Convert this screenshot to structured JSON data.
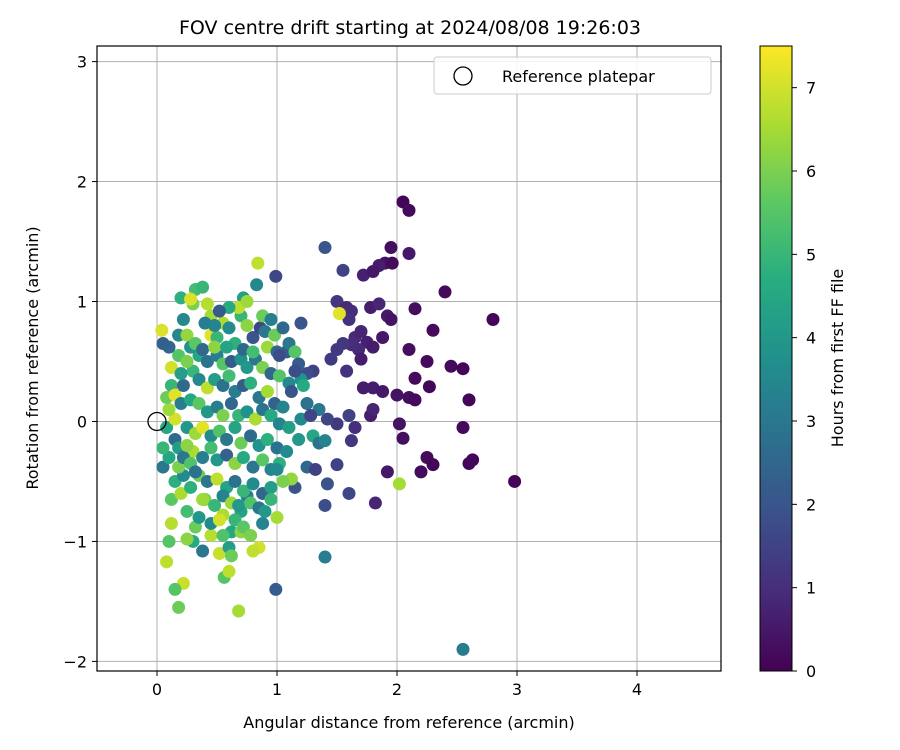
{
  "chart_data": {
    "type": "scatter",
    "title": "FOV centre drift starting at 2024/08/08 19:26:03",
    "xlabel": "Angular distance from reference (arcmin)",
    "ylabel": "Rotation from reference (arcmin)",
    "xlim": [
      -0.5,
      4.7
    ],
    "ylim": [
      -2.08,
      3.13
    ],
    "x_ticks": [
      0,
      1,
      2,
      3,
      4
    ],
    "y_ticks": [
      -2,
      -1,
      0,
      1,
      2,
      3
    ],
    "grid": true,
    "legend": {
      "placement": "top-right",
      "entries": [
        {
          "label": "Reference platepar",
          "marker": "open-circle",
          "x": 0,
          "y": 0
        }
      ]
    },
    "colorbar": {
      "label": "Hours from first FF file",
      "colormap": "viridis",
      "range": [
        0,
        7.5
      ],
      "ticks": [
        0,
        1,
        2,
        3,
        4,
        5,
        6,
        7
      ]
    },
    "points": [
      [
        2.05,
        1.83,
        0.1
      ],
      [
        2.1,
        1.76,
        0.2
      ],
      [
        1.95,
        1.45,
        0.3
      ],
      [
        2.1,
        1.4,
        0.5
      ],
      [
        1.9,
        1.32,
        0.4
      ],
      [
        1.96,
        1.32,
        0.2
      ],
      [
        1.85,
        1.3,
        0.6
      ],
      [
        1.72,
        1.22,
        0.7
      ],
      [
        1.8,
        1.25,
        0.5
      ],
      [
        2.4,
        1.08,
        0.2
      ],
      [
        1.55,
        1.26,
        1.5
      ],
      [
        1.4,
        1.45,
        2.0
      ],
      [
        2.8,
        0.85,
        0.1
      ],
      [
        1.5,
        1.0,
        1.2
      ],
      [
        1.58,
        0.95,
        0.9
      ],
      [
        1.62,
        0.92,
        1.0
      ],
      [
        1.78,
        0.95,
        0.6
      ],
      [
        1.85,
        0.98,
        0.8
      ],
      [
        1.92,
        0.88,
        0.5
      ],
      [
        1.95,
        0.85,
        0.4
      ],
      [
        2.15,
        0.94,
        0.3
      ],
      [
        2.3,
        0.76,
        0.2
      ],
      [
        1.6,
        0.85,
        1.1
      ],
      [
        1.65,
        0.7,
        0.9
      ],
      [
        1.7,
        0.75,
        0.8
      ],
      [
        1.75,
        0.66,
        0.7
      ],
      [
        1.68,
        0.6,
        0.9
      ],
      [
        1.62,
        0.64,
        1.0
      ],
      [
        1.55,
        0.65,
        1.2
      ],
      [
        1.8,
        0.62,
        0.6
      ],
      [
        1.88,
        0.7,
        0.5
      ],
      [
        1.7,
        0.52,
        0.6
      ],
      [
        1.5,
        0.6,
        1.3
      ],
      [
        2.1,
        0.6,
        0.3
      ],
      [
        2.25,
        0.5,
        0.2
      ],
      [
        2.45,
        0.46,
        0.2
      ],
      [
        2.55,
        0.44,
        0.1
      ],
      [
        2.15,
        0.36,
        0.2
      ],
      [
        2.27,
        0.29,
        0.1
      ],
      [
        2.6,
        0.18,
        0.1
      ],
      [
        2.1,
        0.2,
        0.3
      ],
      [
        2.15,
        0.18,
        0.2
      ],
      [
        1.72,
        0.28,
        0.6
      ],
      [
        1.8,
        0.28,
        0.6
      ],
      [
        1.88,
        0.25,
        0.5
      ],
      [
        2.0,
        0.22,
        0.4
      ],
      [
        1.58,
        0.42,
        1.1
      ],
      [
        1.45,
        0.52,
        1.3
      ],
      [
        1.3,
        0.42,
        1.5
      ],
      [
        1.25,
        0.4,
        1.8
      ],
      [
        1.6,
        0.05,
        1.5
      ],
      [
        1.78,
        0.05,
        0.6
      ],
      [
        1.8,
        0.1,
        0.8
      ],
      [
        1.65,
        -0.05,
        1.0
      ],
      [
        1.5,
        -0.02,
        1.3
      ],
      [
        1.42,
        0.02,
        1.6
      ],
      [
        2.02,
        -0.02,
        0.4
      ],
      [
        2.05,
        -0.14,
        0.3
      ],
      [
        1.62,
        -0.16,
        1.2
      ],
      [
        1.5,
        -0.36,
        1.5
      ],
      [
        1.92,
        -0.42,
        0.5
      ],
      [
        2.25,
        -0.3,
        0.2
      ],
      [
        2.3,
        -0.36,
        0.1
      ],
      [
        2.55,
        -0.05,
        0.2
      ],
      [
        2.63,
        -0.32,
        0.1
      ],
      [
        2.6,
        -0.35,
        0.1
      ],
      [
        2.98,
        -0.5,
        0.1
      ],
      [
        2.2,
        -0.42,
        0.2
      ],
      [
        1.82,
        -0.68,
        0.8
      ],
      [
        1.6,
        -0.6,
        1.6
      ],
      [
        1.42,
        -0.52,
        1.9
      ],
      [
        1.4,
        -0.7,
        1.8
      ],
      [
        2.02,
        -0.52,
        6.5
      ],
      [
        1.4,
        -1.13,
        3.2
      ],
      [
        2.55,
        -1.9,
        3.1
      ],
      [
        0.99,
        -1.4,
        2.2
      ],
      [
        0.99,
        1.21,
        1.6
      ],
      [
        0.84,
        1.32,
        6.8
      ],
      [
        0.83,
        1.14,
        3.5
      ],
      [
        0.72,
        1.03,
        4.2
      ],
      [
        1.52,
        0.9,
        7.2
      ],
      [
        1.2,
        0.82,
        2.0
      ],
      [
        1.1,
        0.62,
        6.0
      ],
      [
        1.08,
        0.58,
        2.2
      ],
      [
        1.1,
        0.65,
        3.0
      ],
      [
        1.2,
        0.35,
        3.8
      ],
      [
        1.2,
        0.02,
        3.5
      ],
      [
        1.25,
        -0.38,
        2.5
      ],
      [
        1.18,
        -0.15,
        4.0
      ],
      [
        1.3,
        -0.12,
        4.5
      ],
      [
        1.35,
        0.1,
        3.0
      ],
      [
        1.32,
        -0.4,
        1.5
      ],
      [
        1.15,
        -0.55,
        1.9
      ],
      [
        1.0,
        -0.8,
        6.5
      ],
      [
        0.88,
        -0.85,
        3.4
      ],
      [
        1.12,
        -0.48,
        6.3
      ],
      [
        1.35,
        -0.18,
        2.8
      ],
      [
        1.4,
        -0.16,
        3.4
      ],
      [
        0.85,
        -1.05,
        7.0
      ],
      [
        0.8,
        -1.08,
        6.8
      ],
      [
        0.68,
        -1.58,
        6.5
      ],
      [
        0.56,
        -1.3,
        5.5
      ],
      [
        0.6,
        -1.25,
        6.8
      ],
      [
        0.52,
        -1.1,
        6.9
      ],
      [
        0.62,
        -0.92,
        4.5
      ],
      [
        0.7,
        -0.92,
        6.2
      ],
      [
        0.7,
        -0.75,
        4.3
      ],
      [
        0.65,
        -0.82,
        5.0
      ],
      [
        0.75,
        -0.62,
        3.2
      ],
      [
        0.55,
        -0.78,
        6.6
      ],
      [
        0.45,
        -0.95,
        6.7
      ],
      [
        0.32,
        -0.88,
        5.8
      ],
      [
        0.3,
        -1.0,
        4.6
      ],
      [
        0.38,
        -1.08,
        3.0
      ],
      [
        0.25,
        -0.98,
        6.2
      ],
      [
        0.22,
        -1.35,
        6.9
      ],
      [
        0.15,
        -1.4,
        5.5
      ],
      [
        0.18,
        -1.55,
        5.8
      ],
      [
        0.08,
        -1.17,
        6.8
      ],
      [
        0.1,
        -1.0,
        5.5
      ],
      [
        0.12,
        -0.85,
        6.7
      ],
      [
        0.12,
        -0.65,
        5.6
      ],
      [
        0.15,
        -0.5,
        4.8
      ],
      [
        0.22,
        -0.45,
        3.6
      ],
      [
        0.18,
        -0.38,
        6.0
      ],
      [
        0.05,
        -0.38,
        3.0
      ],
      [
        0.1,
        -0.3,
        4.5
      ],
      [
        0.05,
        -0.22,
        5.0
      ],
      [
        0.15,
        -0.15,
        2.6
      ],
      [
        0.08,
        -0.05,
        4.5
      ],
      [
        0.15,
        0.02,
        7.0
      ],
      [
        0.1,
        0.1,
        6.4
      ],
      [
        0.08,
        0.2,
        5.8
      ],
      [
        0.12,
        0.3,
        5.0
      ],
      [
        0.15,
        0.22,
        7.2
      ],
      [
        0.2,
        0.15,
        3.2
      ],
      [
        0.22,
        0.3,
        2.6
      ],
      [
        0.12,
        0.45,
        7.0
      ],
      [
        0.18,
        0.55,
        5.5
      ],
      [
        0.1,
        0.62,
        2.5
      ],
      [
        0.18,
        0.72,
        3.5
      ],
      [
        0.04,
        0.76,
        7.1
      ],
      [
        0.05,
        0.65,
        2.3
      ],
      [
        0.25,
        0.72,
        6.3
      ],
      [
        0.22,
        0.85,
        3.5
      ],
      [
        0.3,
        0.98,
        6.0
      ],
      [
        0.32,
        1.1,
        5.2
      ],
      [
        0.38,
        1.12,
        5.0
      ],
      [
        0.2,
        1.03,
        4.8
      ],
      [
        0.28,
        1.02,
        7.1
      ],
      [
        0.42,
        0.98,
        6.7
      ],
      [
        0.45,
        0.88,
        6.5
      ],
      [
        0.4,
        0.82,
        3.2
      ],
      [
        0.45,
        0.72,
        7.2
      ],
      [
        0.5,
        0.7,
        5.0
      ],
      [
        0.55,
        0.82,
        6.6
      ],
      [
        0.6,
        0.78,
        3.6
      ],
      [
        0.65,
        0.65,
        4.8
      ],
      [
        0.7,
        0.88,
        5.0
      ],
      [
        0.68,
        0.95,
        6.8
      ],
      [
        0.75,
        0.8,
        6.2
      ],
      [
        0.8,
        0.7,
        2.0
      ],
      [
        0.86,
        0.78,
        1.6
      ],
      [
        0.9,
        0.75,
        3.0
      ],
      [
        0.92,
        0.62,
        6.4
      ],
      [
        1.0,
        0.58,
        2.6
      ],
      [
        0.98,
        0.72,
        5.8
      ],
      [
        1.02,
        0.55,
        1.8
      ],
      [
        0.35,
        0.55,
        4.5
      ],
      [
        0.42,
        0.5,
        2.8
      ],
      [
        0.5,
        0.55,
        3.2
      ],
      [
        0.55,
        0.48,
        5.5
      ],
      [
        0.62,
        0.5,
        2.2
      ],
      [
        0.7,
        0.52,
        3.8
      ],
      [
        0.75,
        0.45,
        4.0
      ],
      [
        0.82,
        0.52,
        3.0
      ],
      [
        0.88,
        0.45,
        6.0
      ],
      [
        0.95,
        0.4,
        2.5
      ],
      [
        1.02,
        0.38,
        5.5
      ],
      [
        1.1,
        0.32,
        3.6
      ],
      [
        1.12,
        0.25,
        2.0
      ],
      [
        0.3,
        0.42,
        5.0
      ],
      [
        0.35,
        0.35,
        3.5
      ],
      [
        0.42,
        0.28,
        6.8
      ],
      [
        0.48,
        0.35,
        4.2
      ],
      [
        0.55,
        0.3,
        2.8
      ],
      [
        0.6,
        0.38,
        5.2
      ],
      [
        0.65,
        0.25,
        3.2
      ],
      [
        0.72,
        0.3,
        2.2
      ],
      [
        0.78,
        0.32,
        4.8
      ],
      [
        0.85,
        0.2,
        3.0
      ],
      [
        0.92,
        0.25,
        6.5
      ],
      [
        0.98,
        0.15,
        2.4
      ],
      [
        1.05,
        0.12,
        3.4
      ],
      [
        0.28,
        0.18,
        4.5
      ],
      [
        0.35,
        0.15,
        5.6
      ],
      [
        0.42,
        0.08,
        4.0
      ],
      [
        0.5,
        0.12,
        3.2
      ],
      [
        0.55,
        0.05,
        6.0
      ],
      [
        0.62,
        0.15,
        2.5
      ],
      [
        0.68,
        0.05,
        5.0
      ],
      [
        0.75,
        0.08,
        3.8
      ],
      [
        0.82,
        0.02,
        6.6
      ],
      [
        0.88,
        0.1,
        2.9
      ],
      [
        0.95,
        0.05,
        4.6
      ],
      [
        1.02,
        -0.02,
        3.4
      ],
      [
        1.1,
        -0.05,
        4.2
      ],
      [
        0.25,
        -0.05,
        4.0
      ],
      [
        0.32,
        -0.1,
        6.4
      ],
      [
        0.38,
        -0.05,
        7.2
      ],
      [
        0.45,
        -0.12,
        3.6
      ],
      [
        0.52,
        -0.08,
        5.4
      ],
      [
        0.58,
        -0.15,
        3.0
      ],
      [
        0.65,
        -0.05,
        4.4
      ],
      [
        0.7,
        -0.18,
        5.8
      ],
      [
        0.78,
        -0.12,
        2.6
      ],
      [
        0.85,
        -0.2,
        3.8
      ],
      [
        0.92,
        -0.15,
        4.8
      ],
      [
        1.0,
        -0.22,
        2.8
      ],
      [
        1.08,
        -0.25,
        3.6
      ],
      [
        0.3,
        -0.25,
        6.6
      ],
      [
        0.38,
        -0.3,
        3.2
      ],
      [
        0.45,
        -0.22,
        5.2
      ],
      [
        0.5,
        -0.32,
        4.0
      ],
      [
        0.58,
        -0.28,
        2.4
      ],
      [
        0.65,
        -0.35,
        6.2
      ],
      [
        0.72,
        -0.3,
        4.6
      ],
      [
        0.8,
        -0.38,
        3.0
      ],
      [
        0.88,
        -0.32,
        5.6
      ],
      [
        0.95,
        -0.4,
        3.4
      ],
      [
        1.02,
        -0.35,
        4.8
      ],
      [
        0.35,
        -0.45,
        5.8
      ],
      [
        0.42,
        -0.5,
        3.0
      ],
      [
        0.5,
        -0.48,
        6.8
      ],
      [
        0.58,
        -0.55,
        4.4
      ],
      [
        0.65,
        -0.5,
        2.8
      ],
      [
        0.72,
        -0.58,
        5.0
      ],
      [
        0.8,
        -0.52,
        3.6
      ],
      [
        0.88,
        -0.6,
        2.5
      ],
      [
        0.95,
        -0.55,
        4.2
      ],
      [
        0.4,
        -0.65,
        6.0
      ],
      [
        0.48,
        -0.7,
        5.0
      ],
      [
        0.55,
        -0.62,
        3.4
      ],
      [
        0.62,
        -0.68,
        6.4
      ],
      [
        0.68,
        -0.7,
        4.0
      ],
      [
        0.78,
        -0.68,
        5.4
      ],
      [
        0.85,
        -0.72,
        3.0
      ],
      [
        0.2,
        0.4,
        4.2
      ],
      [
        0.25,
        0.5,
        6.0
      ],
      [
        0.28,
        0.62,
        3.8
      ],
      [
        0.32,
        0.65,
        5.6
      ],
      [
        0.38,
        0.6,
        2.6
      ],
      [
        0.48,
        0.62,
        6.2
      ],
      [
        0.58,
        0.62,
        4.4
      ],
      [
        0.72,
        0.6,
        2.6
      ],
      [
        0.8,
        0.58,
        5.2
      ],
      [
        0.6,
        0.95,
        4.6
      ],
      [
        0.52,
        0.92,
        2.2
      ],
      [
        0.48,
        0.8,
        3.4
      ],
      [
        0.75,
        1.0,
        6.4
      ],
      [
        0.88,
        0.88,
        5.8
      ],
      [
        0.95,
        0.85,
        3.2
      ],
      [
        1.05,
        0.78,
        2.6
      ],
      [
        1.15,
        0.58,
        5.5
      ],
      [
        1.18,
        0.48,
        2.2
      ],
      [
        1.22,
        0.3,
        4.6
      ],
      [
        1.25,
        0.15,
        2.8
      ],
      [
        1.28,
        0.05,
        1.6
      ],
      [
        1.15,
        0.42,
        1.8
      ],
      [
        0.18,
        -0.22,
        4.2
      ],
      [
        0.22,
        -0.3,
        3.0
      ],
      [
        0.25,
        -0.2,
        6.2
      ],
      [
        0.28,
        -0.35,
        5.4
      ],
      [
        0.32,
        -0.42,
        2.8
      ],
      [
        0.2,
        -0.6,
        6.6
      ],
      [
        0.28,
        -0.55,
        4.8
      ],
      [
        0.25,
        -0.75,
        5.2
      ],
      [
        0.35,
        -0.8,
        4.0
      ],
      [
        0.38,
        -0.65,
        6.4
      ],
      [
        0.45,
        -0.85,
        3.6
      ],
      [
        0.55,
        -0.95,
        5.4
      ],
      [
        0.6,
        -1.05,
        4.2
      ],
      [
        0.52,
        -0.82,
        7.0
      ],
      [
        0.72,
        -0.88,
        5.6
      ],
      [
        0.78,
        -0.95,
        6.0
      ],
      [
        0.9,
        -0.75,
        4.0
      ],
      [
        0.95,
        -0.65,
        5.0
      ],
      [
        1.05,
        -0.5,
        6.0
      ],
      [
        1.0,
        -0.4,
        3.6
      ],
      [
        0.62,
        -1.12,
        5.8
      ]
    ]
  }
}
